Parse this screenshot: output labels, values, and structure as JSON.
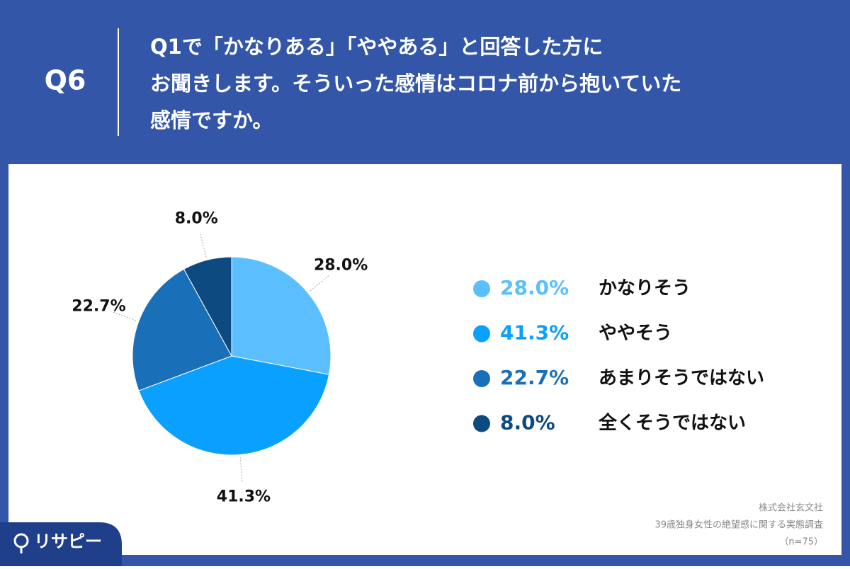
{
  "header": {
    "label": "Q6",
    "question": [
      "Q1で「かなりある」「ややある」と回答した方に",
      "お聞きします。そういった感情はコロナ前から抱いていた",
      "感情ですか。"
    ]
  },
  "chart_data": {
    "type": "pie",
    "categories": [
      "かなりそう",
      "ややそう",
      "あまりそうではない",
      "全くそうではない"
    ],
    "values": [
      28.0,
      41.3,
      22.7,
      8.0
    ],
    "value_labels": [
      "28.0%",
      "41.3%",
      "22.7%",
      "8.0%"
    ],
    "colors": [
      "#5bbfff",
      "#0aa0ff",
      "#1a70b8",
      "#0d4a80"
    ],
    "legend": "right"
  },
  "source": [
    "株式会社玄文社",
    "39歳独身女性の絶望感に関する実態調査",
    "（n=75）"
  ],
  "brand": "リサピー"
}
